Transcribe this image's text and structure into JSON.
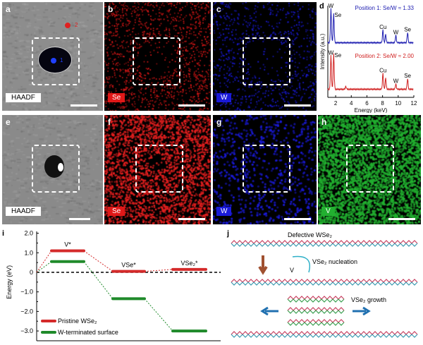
{
  "panels": {
    "a": {
      "label": "a",
      "tag": "HAADF",
      "marker1": "1",
      "marker2": "2"
    },
    "b": {
      "label": "b",
      "tag": "Se"
    },
    "c": {
      "label": "c",
      "tag": "W"
    },
    "e": {
      "label": "e",
      "tag": "HAADF"
    },
    "f": {
      "label": "f",
      "tag": "Se"
    },
    "g": {
      "label": "g",
      "tag": "W"
    },
    "h": {
      "label": "h",
      "tag": "V"
    }
  },
  "colors": {
    "se": "#e01818",
    "w": "#1a1ad8",
    "v": "#22b030",
    "pos1": "#1c1cb0",
    "pos2": "#d02020"
  },
  "chart_data": [
    {
      "panel": "d",
      "type": "line",
      "xlabel": "Energy (keV)",
      "ylabel": "Intensity (a.u.)",
      "xlim": [
        1,
        12
      ],
      "xticks": [
        2,
        4,
        6,
        8,
        10,
        12
      ],
      "series": [
        {
          "name": "Position 1: Se/W ≈ 1.33",
          "peaks": [
            {
              "x": 1.4,
              "h": 1.0,
              "label": "W"
            },
            {
              "x": 1.75,
              "h": 0.85,
              "label": "Se"
            },
            {
              "x": 8.05,
              "h": 0.38,
              "label": "Cu"
            },
            {
              "x": 8.4,
              "h": 0.25
            },
            {
              "x": 9.7,
              "h": 0.22,
              "label": "W"
            },
            {
              "x": 11.2,
              "h": 0.3,
              "label": "Se"
            }
          ]
        },
        {
          "name": "Position 2: Se/W ≈ 2.00",
          "peaks": [
            {
              "x": 1.4,
              "h": 0.95,
              "label": "W"
            },
            {
              "x": 1.75,
              "h": 1.0,
              "label": "Se"
            },
            {
              "x": 3.3,
              "h": 0.08
            },
            {
              "x": 8.05,
              "h": 0.45,
              "label": "Cu"
            },
            {
              "x": 8.4,
              "h": 0.32
            },
            {
              "x": 9.7,
              "h": 0.15,
              "label": "W"
            },
            {
              "x": 11.2,
              "h": 0.3,
              "label": "Se"
            }
          ]
        }
      ]
    },
    {
      "panel": "i",
      "type": "line",
      "ylabel": "Energy (eV)",
      "ylim": [
        -3.3,
        2.0
      ],
      "yticks": [
        "2.0",
        "1.0",
        "0",
        "−1.0",
        "−2.0",
        "−3.0"
      ],
      "states": [
        "V*",
        "VSe*",
        "VSe2*"
      ],
      "series": [
        {
          "name": "Pristine WSe2",
          "values": [
            0,
            1.1,
            0.05,
            0.15
          ]
        },
        {
          "name": "W-terminated surface",
          "values": [
            0,
            0.55,
            -1.35,
            -3.0
          ]
        }
      ]
    }
  ],
  "d": {
    "label": "d"
  },
  "i": {
    "label": "i",
    "state_labels": [
      "V*",
      "VSe*",
      "VSe₂*"
    ],
    "legend": [
      "Pristine WSe₂",
      "W-terminated surface"
    ]
  },
  "j": {
    "label": "j",
    "defective": "Defective WSe₂",
    "nucleation": "VSe₂ nucleation",
    "v": "V",
    "growth": "VSe₂ growth"
  }
}
